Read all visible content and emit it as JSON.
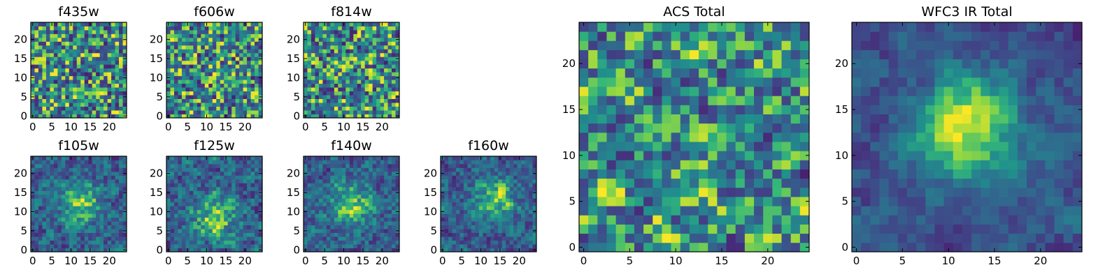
{
  "chart_data": [
    {
      "type": "heatmap",
      "title": "f435w",
      "grid_size": 25,
      "colormap": "viridis",
      "xticks": [
        0,
        5,
        10,
        15,
        20
      ],
      "yticks": [
        0,
        5,
        10,
        15,
        20
      ],
      "xtick_labels": [
        "0",
        "5",
        "10",
        "15",
        "20"
      ],
      "ytick_labels": [
        "0",
        "5",
        "10",
        "15",
        "20"
      ],
      "xlim": [
        0,
        24
      ],
      "ylim": [
        0,
        24
      ],
      "structure": "noise"
    },
    {
      "type": "heatmap",
      "title": "f606w",
      "grid_size": 25,
      "colormap": "viridis",
      "xticks": [
        0,
        5,
        10,
        15,
        20
      ],
      "yticks": [
        0,
        5,
        10,
        15,
        20
      ],
      "xtick_labels": [
        "0",
        "5",
        "10",
        "15",
        "20"
      ],
      "ytick_labels": [
        "0",
        "5",
        "10",
        "15",
        "20"
      ],
      "xlim": [
        0,
        24
      ],
      "ylim": [
        0,
        24
      ],
      "structure": "noise"
    },
    {
      "type": "heatmap",
      "title": "f814w",
      "grid_size": 25,
      "colormap": "viridis",
      "xticks": [
        0,
        5,
        10,
        15,
        20
      ],
      "yticks": [
        0,
        5,
        10,
        15,
        20
      ],
      "xtick_labels": [
        "0",
        "5",
        "10",
        "15",
        "20"
      ],
      "ytick_labels": [
        "0",
        "5",
        "10",
        "15",
        "20"
      ],
      "xlim": [
        0,
        24
      ],
      "ylim": [
        0,
        24
      ],
      "structure": "noise"
    },
    {
      "type": "heatmap",
      "title": "f105w",
      "grid_size": 25,
      "colormap": "viridis",
      "xticks": [
        0,
        5,
        10,
        15,
        20
      ],
      "yticks": [
        0,
        5,
        10,
        15,
        20
      ],
      "xtick_labels": [
        "0",
        "5",
        "10",
        "15",
        "20"
      ],
      "ytick_labels": [
        "0",
        "5",
        "10",
        "15",
        "20"
      ],
      "xlim": [
        0,
        24
      ],
      "ylim": [
        0,
        24
      ],
      "structure": "source",
      "source_center": [
        13,
        12
      ]
    },
    {
      "type": "heatmap",
      "title": "f125w",
      "grid_size": 25,
      "colormap": "viridis",
      "xticks": [
        0,
        5,
        10,
        15,
        20
      ],
      "yticks": [
        0,
        5,
        10,
        15,
        20
      ],
      "xtick_labels": [
        "0",
        "5",
        "10",
        "15",
        "20"
      ],
      "ytick_labels": [
        "0",
        "5",
        "10",
        "15",
        "20"
      ],
      "xlim": [
        0,
        24
      ],
      "ylim": [
        0,
        24
      ],
      "structure": "source",
      "source_center": [
        12,
        9
      ]
    },
    {
      "type": "heatmap",
      "title": "f140w",
      "grid_size": 25,
      "colormap": "viridis",
      "xticks": [
        0,
        5,
        10,
        15,
        20
      ],
      "yticks": [
        0,
        5,
        10,
        15,
        20
      ],
      "xtick_labels": [
        "0",
        "5",
        "10",
        "15",
        "20"
      ],
      "ytick_labels": [
        "0",
        "5",
        "10",
        "15",
        "20"
      ],
      "xlim": [
        0,
        24
      ],
      "ylim": [
        0,
        24
      ],
      "structure": "source",
      "source_center": [
        12,
        12
      ]
    },
    {
      "type": "heatmap",
      "title": "f160w",
      "grid_size": 25,
      "colormap": "viridis",
      "xticks": [
        0,
        5,
        10,
        15,
        20
      ],
      "yticks": [
        0,
        5,
        10,
        15,
        20
      ],
      "xtick_labels": [
        "0",
        "5",
        "10",
        "15",
        "20"
      ],
      "ytick_labels": [
        "0",
        "5",
        "10",
        "15",
        "20"
      ],
      "xlim": [
        0,
        24
      ],
      "ylim": [
        0,
        24
      ],
      "structure": "source",
      "source_center": [
        14,
        13
      ]
    },
    {
      "type": "heatmap",
      "title": "ACS Total",
      "grid_size": 25,
      "colormap": "viridis",
      "xticks": [
        0,
        5,
        10,
        15,
        20
      ],
      "yticks": [
        0,
        5,
        10,
        15,
        20
      ],
      "xtick_labels": [
        "0",
        "5",
        "10",
        "15",
        "20"
      ],
      "ytick_labels": [
        "0",
        "5",
        "10",
        "15",
        "20"
      ],
      "xlim": [
        0,
        24
      ],
      "ylim": [
        0,
        24
      ],
      "structure": "noise_smooth"
    },
    {
      "type": "heatmap",
      "title": "WFC3 IR Total",
      "grid_size": 25,
      "colormap": "viridis",
      "xticks": [
        0,
        5,
        10,
        15,
        20
      ],
      "yticks": [
        0,
        5,
        10,
        15,
        20
      ],
      "xtick_labels": [
        "0",
        "5",
        "10",
        "15",
        "20"
      ],
      "ytick_labels": [
        "0",
        "5",
        "10",
        "15",
        "20"
      ],
      "xlim": [
        0,
        24
      ],
      "ylim": [
        0,
        24
      ],
      "structure": "source_bright",
      "source_center": [
        12,
        13
      ]
    }
  ]
}
